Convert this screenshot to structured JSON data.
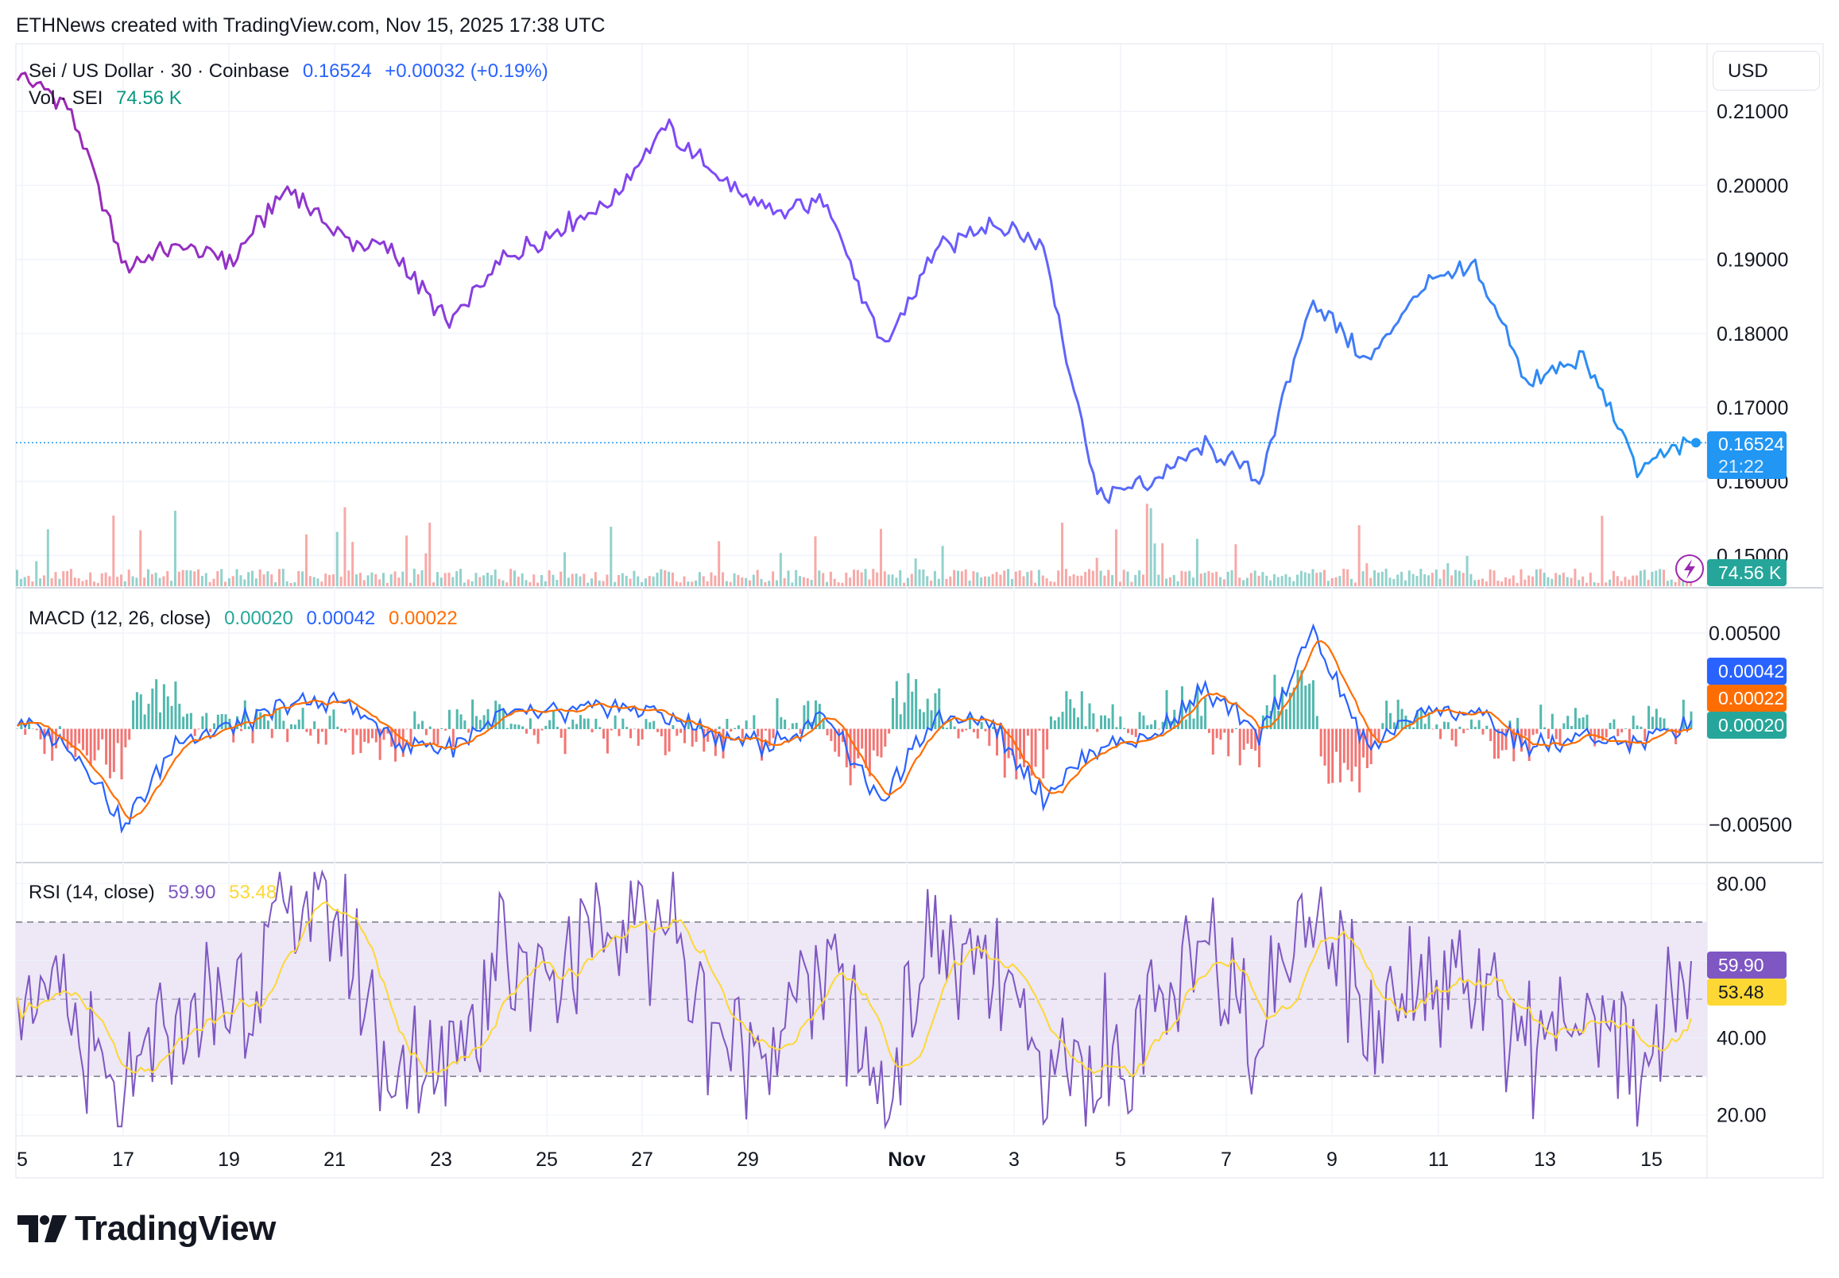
{
  "header": {
    "text": "ETHNews created with TradingView.com, Nov 15, 2025 17:38 UTC"
  },
  "main_pane": {
    "symbol": "Sei / US Dollar · 30 · Coinbase",
    "price": "0.16524",
    "change": "+0.00032 (+0.19%)",
    "volume_label": "Vol · SEI",
    "volume_value": "74.56 K",
    "currency": "USD",
    "last_price_badge": "0.16524",
    "countdown_badge": "21:22",
    "volume_badge": "74.56 K",
    "y_ticks": [
      "0.21000",
      "0.20000",
      "0.19000",
      "0.18000",
      "0.17000",
      "0.16000",
      "0.15000"
    ]
  },
  "macd_pane": {
    "label": "MACD (12, 26, close)",
    "histogram": "0.00020",
    "macd": "0.00042",
    "signal": "0.00022",
    "y_ticks": [
      "0.00500",
      "−0.00500"
    ],
    "badges": [
      "0.00042",
      "0.00022",
      "0.00020"
    ]
  },
  "rsi_pane": {
    "label": "RSI (14, close)",
    "rsi": "59.90",
    "rsi_ma": "53.48",
    "y_ticks": [
      "80.00",
      "60.00",
      "40.00",
      "20.00"
    ],
    "badges": [
      "59.90",
      "53.48"
    ]
  },
  "x_axis": {
    "labels": [
      "5",
      "17",
      "19",
      "21",
      "23",
      "25",
      "27",
      "29",
      "Nov",
      "3",
      "5",
      "7",
      "9",
      "11",
      "13",
      "15"
    ]
  },
  "brand": {
    "name": "TradingView"
  },
  "colors": {
    "price_line_start": "#9c27b0",
    "price_line_mid": "#7b4dff",
    "price_line_end": "#2196f3",
    "macd_line": "#2962ff",
    "signal_line": "#ff6d00",
    "hist_up": "#26a69a",
    "hist_down": "#ef5350",
    "rsi_line": "#7e57c2",
    "rsi_ma": "#fdd835",
    "rsi_band": "#ede7f6",
    "price_text_blue": "#2962ff",
    "volume_text_teal": "#089981"
  },
  "chart_data": [
    {
      "type": "line",
      "title": "Sei / US Dollar · 30 · Coinbase",
      "x": [
        "Oct 15",
        "Oct 16",
        "Oct 17",
        "Oct 18",
        "Oct 19",
        "Oct 20",
        "Oct 21",
        "Oct 22",
        "Oct 23",
        "Oct 24",
        "Oct 25",
        "Oct 26",
        "Oct 27",
        "Oct 28",
        "Oct 29",
        "Oct 30",
        "Oct 31",
        "Nov 1",
        "Nov 2",
        "Nov 3",
        "Nov 4",
        "Nov 5",
        "Nov 6",
        "Nov 7",
        "Nov 8",
        "Nov 9",
        "Nov 10",
        "Nov 11",
        "Nov 12",
        "Nov 13",
        "Nov 14",
        "Nov 15"
      ],
      "series": [
        {
          "name": "SEI/USD",
          "values": [
            0.2155,
            0.21,
            0.189,
            0.192,
            0.19,
            0.2,
            0.193,
            0.191,
            0.181,
            0.19,
            0.194,
            0.198,
            0.208,
            0.201,
            0.196,
            0.198,
            0.178,
            0.191,
            0.195,
            0.192,
            0.158,
            0.16,
            0.165,
            0.16,
            0.185,
            0.176,
            0.186,
            0.189,
            0.173,
            0.177,
            0.162,
            0.16524
          ]
        }
      ],
      "ylim": [
        0.148,
        0.217
      ],
      "volume_last": 74560
    },
    {
      "type": "line",
      "title": "MACD (12, 26, close)",
      "x": [
        "Oct 15",
        "Oct 16",
        "Oct 17",
        "Oct 18",
        "Oct 19",
        "Oct 20",
        "Oct 21",
        "Oct 22",
        "Oct 23",
        "Oct 24",
        "Oct 25",
        "Oct 26",
        "Oct 27",
        "Oct 28",
        "Oct 29",
        "Oct 30",
        "Oct 31",
        "Nov 1",
        "Nov 2",
        "Nov 3",
        "Nov 4",
        "Nov 5",
        "Nov 6",
        "Nov 7",
        "Nov 8",
        "Nov 9",
        "Nov 10",
        "Nov 11",
        "Nov 12",
        "Nov 13",
        "Nov 14",
        "Nov 15"
      ],
      "series": [
        {
          "name": "MACD",
          "values": [
            0.0005,
            -0.001,
            -0.005,
            -0.0005,
            0.0001,
            0.0012,
            0.0015,
            -0.0006,
            -0.001,
            0.0007,
            0.0007,
            0.0012,
            0.0008,
            -0.0005,
            -0.0008,
            0.0007,
            -0.004,
            0.0007,
            0.0005,
            -0.0035,
            -0.001,
            -0.0005,
            0.002,
            -0.0003,
            0.005,
            -0.001,
            0.001,
            0.0008,
            -0.001,
            -0.0005,
            -0.0008,
            0.00042
          ]
        },
        {
          "name": "Signal",
          "values": [
            0.0004,
            -0.0007,
            -0.0042,
            -0.0008,
            -0.0001,
            0.0009,
            0.0012,
            -0.0003,
            -0.0009,
            0.0004,
            0.0006,
            0.001,
            0.0008,
            -0.0003,
            -0.0007,
            0.0004,
            -0.0033,
            0.0003,
            0.0004,
            -0.003,
            -0.0012,
            -0.0007,
            0.0015,
            -0.0001,
            0.0044,
            -0.0006,
            0.0009,
            0.0007,
            -0.0008,
            -0.0006,
            -0.0007,
            0.00022
          ]
        },
        {
          "name": "Histogram",
          "values": [
            0.0001,
            -0.0003,
            -0.0008,
            0.0003,
            0.0002,
            0.0003,
            0.0003,
            -0.0003,
            -0.0001,
            0.0003,
            0.0001,
            0.0002,
            0.0,
            -0.0002,
            -0.0001,
            0.0003,
            -0.0007,
            0.0004,
            0.0001,
            -0.0005,
            0.0002,
            0.0002,
            0.0005,
            -0.0002,
            0.0006,
            -0.0004,
            0.0001,
            0.0001,
            -0.0002,
            0.0001,
            -0.0001,
            0.0002
          ]
        }
      ],
      "ylim": [
        -0.0055,
        0.0055
      ]
    },
    {
      "type": "line",
      "title": "RSI (14, close)",
      "x": [
        "Oct 15",
        "Oct 16",
        "Oct 17",
        "Oct 18",
        "Oct 19",
        "Oct 20",
        "Oct 21",
        "Oct 22",
        "Oct 23",
        "Oct 24",
        "Oct 25",
        "Oct 26",
        "Oct 27",
        "Oct 28",
        "Oct 29",
        "Oct 30",
        "Oct 31",
        "Nov 1",
        "Nov 2",
        "Nov 3",
        "Nov 4",
        "Nov 5",
        "Nov 6",
        "Nov 7",
        "Nov 8",
        "Nov 9",
        "Nov 10",
        "Nov 11",
        "Nov 12",
        "Nov 13",
        "Nov 14",
        "Nov 15"
      ],
      "series": [
        {
          "name": "RSI",
          "values": [
            55,
            40,
            20,
            45,
            50,
            70,
            75,
            25,
            35,
            62,
            58,
            66,
            70,
            38,
            42,
            60,
            22,
            65,
            55,
            28,
            35,
            40,
            60,
            45,
            80,
            42,
            60,
            55,
            38,
            45,
            30,
            59.9
          ]
        },
        {
          "name": "RSI MA",
          "values": [
            52,
            45,
            32,
            42,
            48,
            62,
            68,
            35,
            38,
            55,
            56,
            62,
            64,
            45,
            44,
            55,
            30,
            58,
            55,
            35,
            36,
            40,
            55,
            48,
            72,
            50,
            56,
            55,
            43,
            46,
            38,
            53.48
          ]
        }
      ],
      "bands": [
        70,
        50,
        30
      ],
      "ylim": [
        15,
        85
      ]
    }
  ]
}
